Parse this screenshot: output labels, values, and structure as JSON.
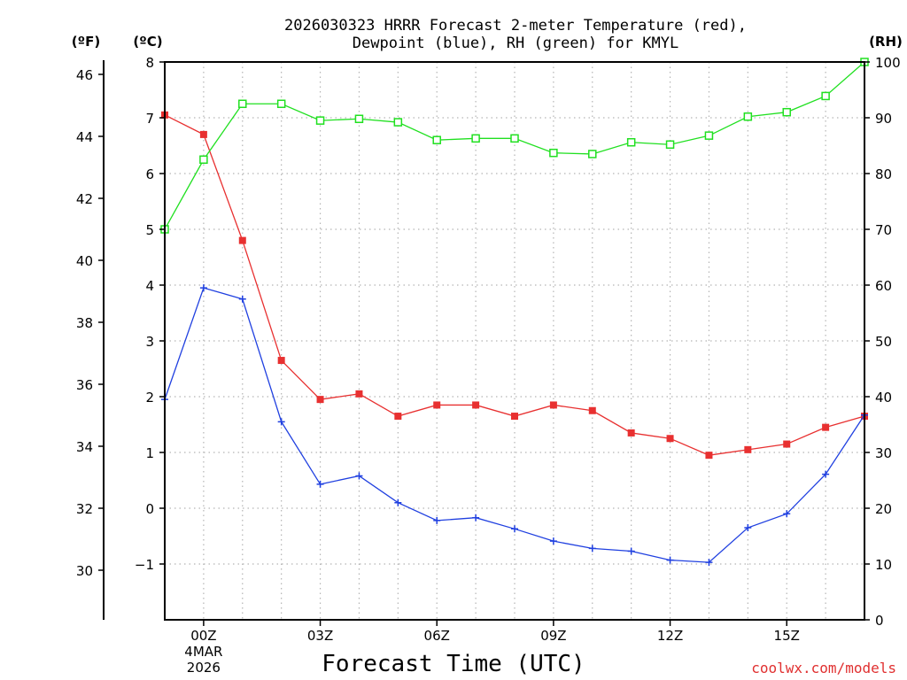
{
  "chart_data": {
    "type": "line",
    "title_line1": "2026030323 HRRR Forecast 2-meter Temperature (red),",
    "title_line2": "Dewpoint (blue), RH (green) for KMYL",
    "xlabel": "Forecast Time (UTC)",
    "units": {
      "fahrenheit": "(ºF)",
      "celsius": "(ºC)",
      "rh": "(RH)"
    },
    "credit": "coolwx.com/models",
    "x_hours": [
      -1,
      0,
      1,
      2,
      3,
      4,
      5,
      6,
      7,
      8,
      9,
      10,
      11,
      12,
      13,
      14,
      15,
      16,
      17
    ],
    "x_ticks": [
      {
        "hour": 0,
        "label": "00Z",
        "sub1": "4MAR",
        "sub2": "2026"
      },
      {
        "hour": 3,
        "label": "03Z"
      },
      {
        "hour": 6,
        "label": "06Z"
      },
      {
        "hour": 9,
        "label": "09Z"
      },
      {
        "hour": 12,
        "label": "12Z"
      },
      {
        "hour": 15,
        "label": "15Z"
      }
    ],
    "xlim": [
      -1,
      17
    ],
    "celsius_range": [
      -2,
      8
    ],
    "celsius_ticks": [
      -1,
      0,
      1,
      2,
      3,
      4,
      5,
      6,
      7,
      8
    ],
    "fahrenheit_ticks": [
      30,
      32,
      34,
      36,
      38,
      40,
      42,
      44,
      46
    ],
    "rh_range": [
      0,
      100
    ],
    "rh_ticks": [
      0,
      10,
      20,
      30,
      40,
      50,
      60,
      70,
      80,
      90,
      100
    ],
    "grid": true,
    "series": [
      {
        "name": "2-meter Temperature",
        "color": "#e83030",
        "axis": "celsius",
        "marker": "filled-square",
        "values": [
          7.05,
          6.7,
          4.8,
          2.65,
          1.95,
          2.05,
          1.65,
          1.85,
          1.85,
          1.65,
          1.85,
          1.75,
          1.35,
          1.25,
          0.95,
          1.05,
          1.15,
          1.45,
          1.65
        ]
      },
      {
        "name": "Dewpoint",
        "color": "#2040e0",
        "axis": "celsius",
        "marker": "plus",
        "values": [
          1.95,
          3.95,
          3.75,
          1.55,
          0.43,
          0.58,
          0.1,
          -0.22,
          -0.17,
          -0.37,
          -0.59,
          -0.72,
          -0.77,
          -0.93,
          -0.97,
          -0.35,
          -0.1,
          0.61,
          1.67
        ]
      },
      {
        "name": "RH",
        "color": "#20e020",
        "axis": "rh",
        "marker": "open-square",
        "values": [
          70,
          82.5,
          92.5,
          92.5,
          89.5,
          89.8,
          89.2,
          86,
          86.3,
          86.3,
          83.7,
          83.5,
          85.6,
          85.2,
          86.8,
          90.2,
          91,
          93.9,
          100
        ]
      }
    ]
  }
}
